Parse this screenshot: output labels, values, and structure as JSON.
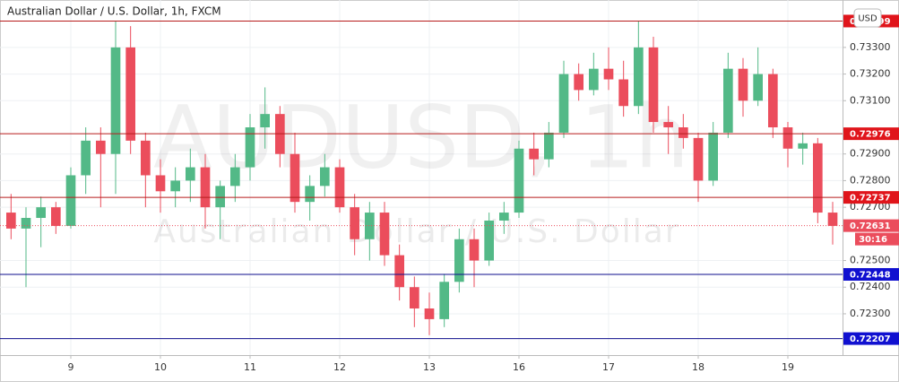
{
  "chart_data": {
    "type": "candlestick",
    "title": "Australian Dollar / U.S. Dollar, 1h, FXCM",
    "watermark": "AUDUSD, 1h",
    "watermark_subtitle": "Australian Dollar / U.S. Dollar",
    "currency": "USD",
    "up_color": "#53b987",
    "down_color": "#eb4d5c",
    "x": [
      2,
      3,
      4,
      5,
      6,
      7,
      8,
      9,
      10,
      11,
      12,
      13,
      14,
      15,
      16,
      17,
      18,
      19,
      20,
      21,
      22,
      23,
      24,
      25,
      26,
      27,
      28,
      29,
      30,
      31,
      32,
      33,
      34,
      35,
      36,
      37,
      38,
      39,
      40,
      41,
      42,
      43,
      44,
      45,
      46,
      47,
      48,
      49,
      50,
      51,
      52,
      53,
      54,
      55,
      56,
      57
    ],
    "open": [
      0.7268,
      0.7262,
      0.7266,
      0.727,
      0.7263,
      0.7282,
      0.7295,
      0.729,
      0.733,
      0.7295,
      0.7282,
      0.7276,
      0.728,
      0.7285,
      0.727,
      0.7278,
      0.7285,
      0.73,
      0.7305,
      0.729,
      0.7272,
      0.7278,
      0.7285,
      0.727,
      0.7258,
      0.7268,
      0.7252,
      0.724,
      0.7232,
      0.7228,
      0.7242,
      0.7258,
      0.725,
      0.7265,
      0.7268,
      0.7292,
      0.7288,
      0.7298,
      0.732,
      0.7314,
      0.7322,
      0.7318,
      0.7308,
      0.733,
      0.7302,
      0.73,
      0.7296,
      0.728,
      0.7298,
      0.7322,
      0.731,
      0.732,
      0.73,
      0.7292,
      0.7294,
      0.7268
    ],
    "high": [
      0.7275,
      0.727,
      0.7274,
      0.7272,
      0.7285,
      0.73,
      0.73,
      0.734,
      0.7338,
      0.7298,
      0.7288,
      0.7285,
      0.7292,
      0.729,
      0.728,
      0.729,
      0.7305,
      0.7315,
      0.7308,
      0.7298,
      0.7282,
      0.729,
      0.7288,
      0.7275,
      0.7272,
      0.7272,
      0.7256,
      0.7244,
      0.7238,
      0.7245,
      0.7262,
      0.7262,
      0.7268,
      0.7272,
      0.7295,
      0.7298,
      0.7302,
      0.7325,
      0.7324,
      0.7328,
      0.733,
      0.7325,
      0.734,
      0.7334,
      0.7308,
      0.7305,
      0.7298,
      0.7302,
      0.7328,
      0.7326,
      0.733,
      0.7322,
      0.7302,
      0.7298,
      0.7296,
      0.7272
    ],
    "low": [
      0.7258,
      0.724,
      0.7255,
      0.726,
      0.7262,
      0.7275,
      0.727,
      0.7275,
      0.729,
      0.727,
      0.7268,
      0.727,
      0.7272,
      0.7262,
      0.7258,
      0.7272,
      0.728,
      0.7292,
      0.7285,
      0.7268,
      0.7265,
      0.7274,
      0.7268,
      0.7252,
      0.725,
      0.7248,
      0.7235,
      0.7225,
      0.7222,
      0.7225,
      0.7238,
      0.724,
      0.7248,
      0.726,
      0.7266,
      0.7282,
      0.7285,
      0.7296,
      0.731,
      0.7312,
      0.7314,
      0.7304,
      0.7305,
      0.7298,
      0.729,
      0.7292,
      0.7272,
      0.7278,
      0.7296,
      0.7304,
      0.7308,
      0.7296,
      0.7285,
      0.7286,
      0.7264,
      0.7256
    ],
    "close": [
      0.7262,
      0.7266,
      0.727,
      0.7263,
      0.7282,
      0.7295,
      0.729,
      0.733,
      0.7295,
      0.7282,
      0.7276,
      0.728,
      0.7285,
      0.727,
      0.7278,
      0.7285,
      0.73,
      0.7305,
      0.729,
      0.7272,
      0.7278,
      0.7285,
      0.727,
      0.7258,
      0.7268,
      0.7252,
      0.724,
      0.7232,
      0.7228,
      0.7242,
      0.7258,
      0.725,
      0.7265,
      0.7268,
      0.7292,
      0.7288,
      0.7298,
      0.732,
      0.7314,
      0.7322,
      0.7318,
      0.7308,
      0.733,
      0.7302,
      0.73,
      0.7296,
      0.728,
      0.7298,
      0.7322,
      0.731,
      0.732,
      0.73,
      0.7292,
      0.7294,
      0.7268,
      0.7263
    ],
    "xlim": [
      1.26,
      57.66
    ],
    "xticks": [
      {
        "value": 6,
        "label": "9"
      },
      {
        "value": 12,
        "label": "10"
      },
      {
        "value": 18,
        "label": "11"
      },
      {
        "value": 24,
        "label": "12"
      },
      {
        "value": 30,
        "label": "13"
      },
      {
        "value": 36,
        "label": "16"
      },
      {
        "value": 42,
        "label": "17"
      },
      {
        "value": 48,
        "label": "18"
      },
      {
        "value": 54,
        "label": "19"
      }
    ],
    "ylim": [
      0.72145,
      0.73478
    ],
    "yticks": [
      {
        "value": 0.723,
        "label": "0.72300"
      },
      {
        "value": 0.724,
        "label": "0.72400"
      },
      {
        "value": 0.725,
        "label": "0.72500"
      },
      {
        "value": 0.727,
        "label": "0.72700"
      },
      {
        "value": 0.728,
        "label": "0.72800"
      },
      {
        "value": 0.729,
        "label": "0.72900"
      },
      {
        "value": 0.731,
        "label": "0.73100"
      },
      {
        "value": 0.732,
        "label": "0.73200"
      },
      {
        "value": 0.733,
        "label": "0.73300"
      }
    ],
    "grid": true,
    "levels": [
      {
        "value": 0.73399,
        "color": "#b71c1c"
      },
      {
        "value": 0.72976,
        "color": "#b71c1c"
      },
      {
        "value": 0.72737,
        "color": "#b71c1c"
      },
      {
        "value": 0.72448,
        "color": "#0d0d8c"
      },
      {
        "value": 0.72207,
        "color": "#0d0d8c"
      }
    ],
    "level_label_colors": {
      "#b71c1c": "#e0151b",
      "#0d0d8c": "#1010d0"
    },
    "last_price": {
      "value": 0.72631,
      "countdown": "30:16",
      "color": "#eb4d5c"
    }
  }
}
